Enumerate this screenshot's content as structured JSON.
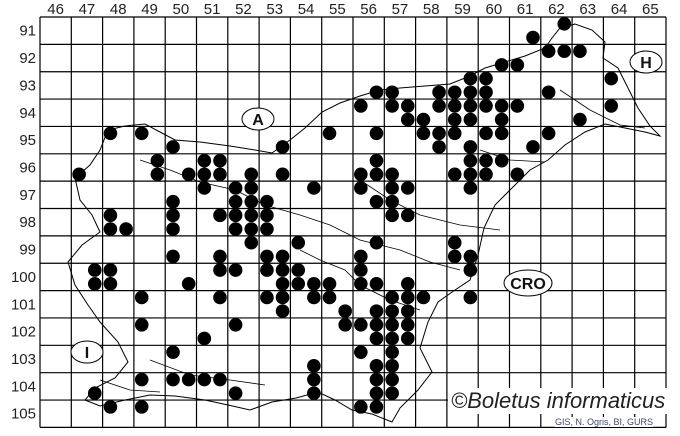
{
  "map": {
    "column_labels": [
      "46",
      "47",
      "48",
      "49",
      "50",
      "51",
      "52",
      "53",
      "54",
      "55",
      "56",
      "57",
      "58",
      "59",
      "60",
      "61",
      "62",
      "63",
      "64",
      "65"
    ],
    "row_labels": [
      "91",
      "92",
      "93",
      "94",
      "95",
      "96",
      "97",
      "98",
      "99",
      "100",
      "101",
      "102",
      "103",
      "104",
      "105"
    ],
    "regions": {
      "austria": "A",
      "hungary": "H",
      "croatia": "CRO",
      "italy": "I"
    },
    "dot_color": "#000000",
    "occurrences": [
      {
        "row": 91.25,
        "cols": [
          62.75
        ]
      },
      {
        "row": 91.75,
        "cols": [
          61.75
        ]
      },
      {
        "row": 92.25,
        "cols": [
          62.25,
          62.75,
          63.25
        ]
      },
      {
        "row": 92.75,
        "cols": [
          60.75,
          61.25
        ]
      },
      {
        "row": 93.25,
        "cols": [
          59.75,
          60.25,
          64.25
        ]
      },
      {
        "row": 93.75,
        "cols": [
          56.75,
          57.25,
          58.75,
          59.25,
          59.75,
          60.25,
          62.25
        ]
      },
      {
        "row": 94.25,
        "cols": [
          56.25,
          57.25,
          57.75,
          58.75,
          59.25,
          59.75,
          60.25,
          60.75,
          61.25,
          64.25
        ]
      },
      {
        "row": 94.75,
        "cols": [
          57.75,
          58.25,
          59.25,
          59.75,
          60.75,
          63.25
        ]
      },
      {
        "row": 95.25,
        "cols": [
          48.25,
          49.25,
          55.25,
          56.75,
          58.25,
          58.75,
          59.25,
          60.25,
          60.75,
          62.25
        ]
      },
      {
        "row": 95.75,
        "cols": [
          50.25,
          53.75,
          58.75,
          59.75,
          61.75
        ]
      },
      {
        "row": 96.25,
        "cols": [
          49.75,
          51.25,
          51.75,
          56.75,
          59.75,
          60.25,
          60.75
        ]
      },
      {
        "row": 96.75,
        "cols": [
          47.25,
          49.75,
          50.75,
          51.25,
          51.75,
          52.75,
          53.75,
          56.25,
          56.75,
          57.25,
          59.25,
          59.75,
          60.25,
          61.25
        ]
      },
      {
        "row": 97.25,
        "cols": [
          51.25,
          52.25,
          52.75,
          54.75,
          56.25,
          57.25,
          57.75,
          59.75
        ]
      },
      {
        "row": 97.75,
        "cols": [
          50.25,
          52.25,
          52.75,
          53.25,
          56.75,
          57.25
        ]
      },
      {
        "row": 98.25,
        "cols": [
          48.25,
          50.25,
          51.75,
          52.25,
          52.75,
          53.25,
          57.25,
          57.75
        ]
      },
      {
        "row": 98.75,
        "cols": [
          48.25,
          48.75,
          50.25,
          52.25,
          52.75,
          53.25
        ]
      },
      {
        "row": 99.25,
        "cols": [
          52.75,
          54.25,
          56.75,
          59.25
        ]
      },
      {
        "row": 99.75,
        "cols": [
          50.25,
          51.75,
          53.25,
          53.75,
          56.25,
          59.25,
          59.75
        ]
      },
      {
        "row": 100.25,
        "cols": [
          47.75,
          48.25,
          51.75,
          52.25,
          53.25,
          53.75,
          54.25,
          56.25,
          59.75
        ]
      },
      {
        "row": 100.75,
        "cols": [
          47.75,
          48.25,
          50.75,
          53.75,
          54.25,
          54.75,
          55.25,
          56.25,
          56.75,
          57.75
        ]
      },
      {
        "row": 101.25,
        "cols": [
          49.25,
          51.75,
          53.25,
          53.75,
          54.75,
          55.25,
          57.25,
          57.75,
          58.25,
          59.75
        ]
      },
      {
        "row": 101.75,
        "cols": [
          53.75,
          55.75,
          56.75,
          57.25,
          57.75
        ]
      },
      {
        "row": 102.25,
        "cols": [
          49.25,
          52.25,
          55.75,
          56.25,
          56.75,
          57.25,
          57.75
        ]
      },
      {
        "row": 102.75,
        "cols": [
          51.25,
          56.75,
          57.25,
          57.75
        ]
      },
      {
        "row": 103.25,
        "cols": [
          50.25,
          56.25,
          57.25
        ]
      },
      {
        "row": 103.75,
        "cols": [
          54.75,
          56.75,
          57.25
        ]
      },
      {
        "row": 104.25,
        "cols": [
          49.25,
          50.25,
          50.75,
          51.25,
          51.75,
          54.75,
          56.75,
          57.25
        ]
      },
      {
        "row": 104.75,
        "cols": [
          47.75,
          52.25,
          54.75,
          56.75,
          57.25
        ]
      },
      {
        "row": 105.25,
        "cols": [
          48.25,
          49.25,
          56.25,
          56.75
        ]
      }
    ]
  },
  "copyright": "©Boletus informaticus",
  "credit": "GIS, N. Ogris, BI, GURS"
}
